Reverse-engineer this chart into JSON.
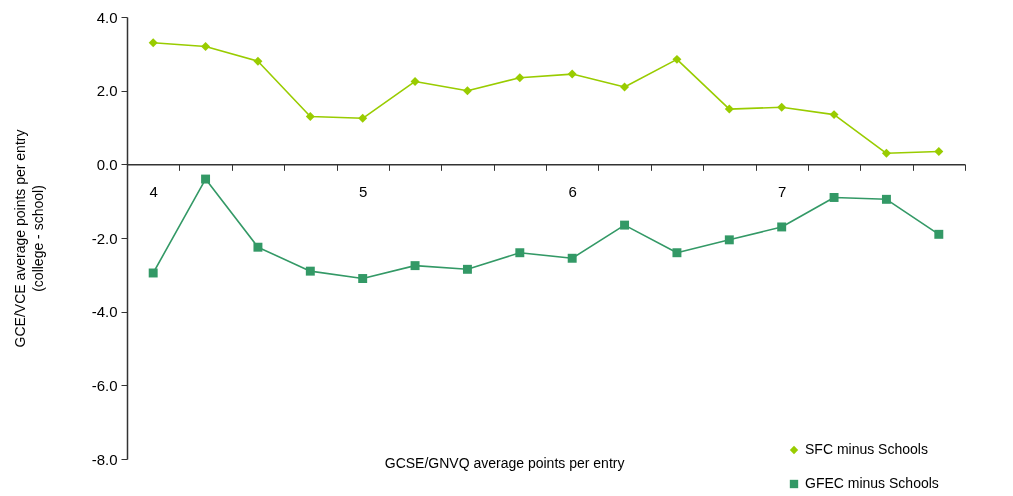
{
  "chart_data": {
    "type": "line",
    "xlabel": "GCSE/GNVQ average points per entry",
    "ylabel": "GCE/VCE average points per entry\n(college - school)",
    "x": [
      4,
      4.25,
      4.5,
      4.75,
      5,
      5.25,
      5.5,
      5.75,
      6,
      6.25,
      6.5,
      6.75,
      7,
      7.25,
      7.5,
      7.75
    ],
    "series": [
      {
        "name": "SFC minus Schools",
        "color": "#99cc00",
        "marker": "diamond",
        "values": [
          3.3,
          3.2,
          2.8,
          1.3,
          1.25,
          2.25,
          2.0,
          2.35,
          2.45,
          2.1,
          2.85,
          1.5,
          1.55,
          1.35,
          0.3,
          0.35
        ]
      },
      {
        "name": "GFEC minus Schools",
        "color": "#339966",
        "marker": "square",
        "values": [
          -2.95,
          -0.4,
          -2.25,
          -2.9,
          -3.1,
          -2.75,
          -2.85,
          -2.4,
          -2.55,
          -1.65,
          -2.4,
          -2.05,
          -1.7,
          -0.9,
          -0.95,
          -1.9
        ]
      }
    ],
    "xlim": [
      3.875,
      7.875
    ],
    "xticks": [
      {
        "value": 3.875,
        "label": null
      },
      {
        "value": 4,
        "label": "4"
      },
      {
        "value": 4.125,
        "label": null
      },
      {
        "value": 4.375,
        "label": null
      },
      {
        "value": 4.625,
        "label": null
      },
      {
        "value": 4.875,
        "label": null
      },
      {
        "value": 5,
        "label": "5"
      },
      {
        "value": 5.125,
        "label": null
      },
      {
        "value": 5.375,
        "label": null
      },
      {
        "value": 5.625,
        "label": null
      },
      {
        "value": 5.875,
        "label": null
      },
      {
        "value": 6,
        "label": "6"
      },
      {
        "value": 6.125,
        "label": null
      },
      {
        "value": 6.375,
        "label": null
      },
      {
        "value": 6.625,
        "label": null
      },
      {
        "value": 6.875,
        "label": null
      },
      {
        "value": 7,
        "label": "7"
      },
      {
        "value": 7.125,
        "label": null
      },
      {
        "value": 7.375,
        "label": null
      },
      {
        "value": 7.625,
        "label": null
      },
      {
        "value": 7.875,
        "label": null
      }
    ],
    "ylim": [
      -8,
      4
    ],
    "yticks": [
      {
        "value": -8,
        "label": "-8.0"
      },
      {
        "value": -6,
        "label": "-6.0"
      },
      {
        "value": -4,
        "label": "-4.0"
      },
      {
        "value": -2,
        "label": "-2.0"
      },
      {
        "value": 0,
        "label": "0.0"
      },
      {
        "value": 2,
        "label": "2.0"
      },
      {
        "value": 4,
        "label": "4.0"
      }
    ],
    "legend": "bottom right",
    "line_style": "solid"
  }
}
